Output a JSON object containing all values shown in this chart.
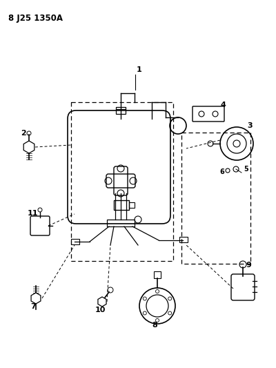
{
  "title": "8 J25 1350A",
  "bg_color": "#ffffff",
  "lc": "#000000",
  "fig_width": 4.0,
  "fig_height": 5.33,
  "dpi": 100
}
